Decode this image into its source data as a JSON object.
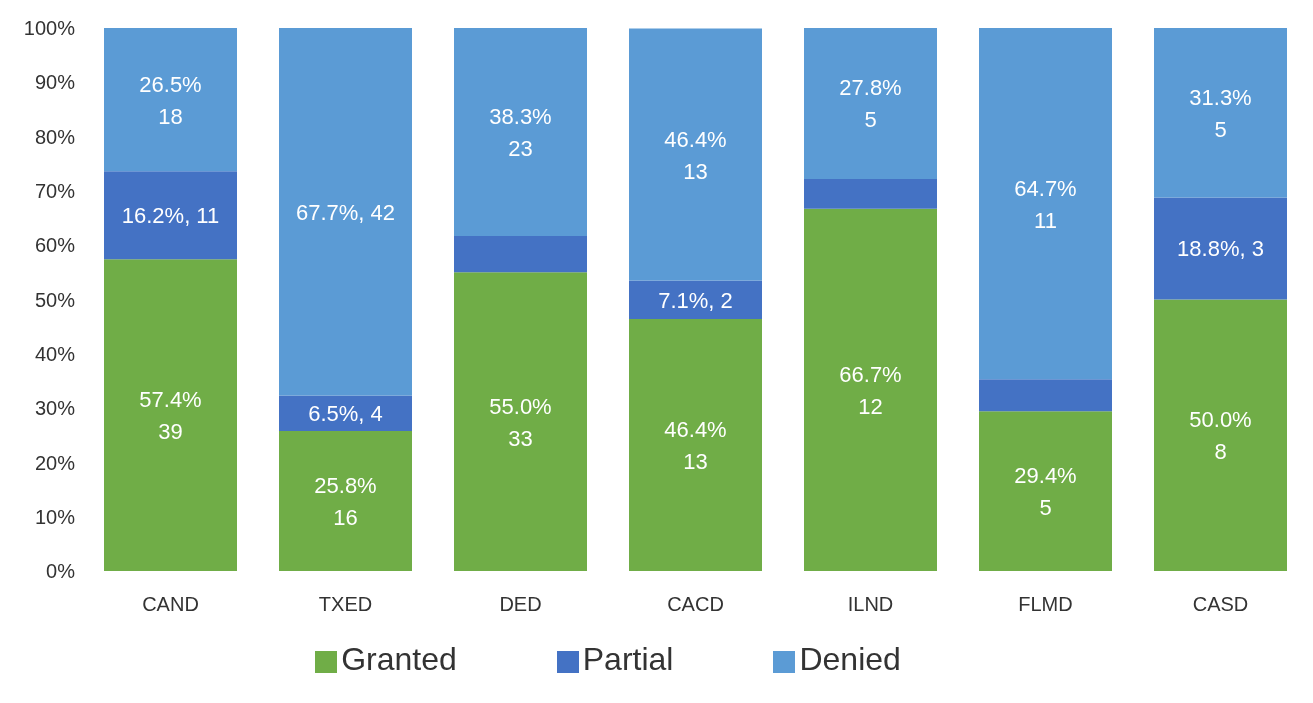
{
  "chart_data": {
    "type": "bar",
    "stacked": true,
    "categories": [
      "CAND",
      "TXED",
      "DED",
      "CACD",
      "ILND",
      "FLMD",
      "CASD"
    ],
    "series": [
      {
        "name": "Granted",
        "color": "#70ad47",
        "values": [
          57.4,
          25.8,
          55.0,
          46.4,
          66.7,
          29.4,
          50.0
        ],
        "value_labels": [
          "57.4%\n39",
          "25.8%\n16",
          "55.0%\n33",
          "46.4%\n13",
          "66.7%\n12",
          "29.4%\n5",
          "50.0%\n8"
        ]
      },
      {
        "name": "Partial",
        "color": "#4472c4",
        "values": [
          16.2,
          6.5,
          6.7,
          7.1,
          5.5,
          5.9,
          18.8
        ],
        "value_labels": [
          "16.2%, 11",
          "6.5%, 4",
          null,
          "7.1%, 2",
          null,
          null,
          "18.8%, 3"
        ]
      },
      {
        "name": "Denied",
        "color": "#5b9bd5",
        "values": [
          26.5,
          67.7,
          38.3,
          46.4,
          27.8,
          64.7,
          31.3
        ],
        "value_labels": [
          "26.5%\n18",
          "67.7%, 42",
          "38.3%\n23",
          "46.4%\n13",
          "27.8%\n5",
          "64.7%\n11",
          "31.3%\n5"
        ]
      }
    ],
    "ylim": [
      0,
      100
    ],
    "yticks": [
      {
        "value": 0,
        "label": "0%"
      },
      {
        "value": 10,
        "label": "10%"
      },
      {
        "value": 20,
        "label": "20%"
      },
      {
        "value": 30,
        "label": "30%"
      },
      {
        "value": 40,
        "label": "40%"
      },
      {
        "value": 50,
        "label": "50%"
      },
      {
        "value": 60,
        "label": "60%"
      },
      {
        "value": 70,
        "label": "70%"
      },
      {
        "value": 80,
        "label": "80%"
      },
      {
        "value": 90,
        "label": "90%"
      },
      {
        "value": 100,
        "label": "100%"
      }
    ],
    "grid": false,
    "legend": "bottom"
  }
}
